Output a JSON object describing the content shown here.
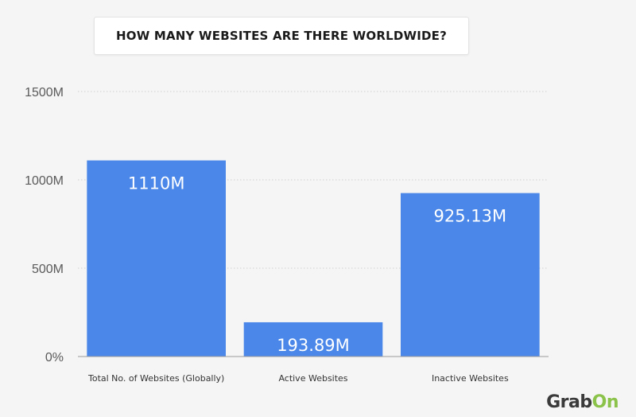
{
  "chart_data": {
    "type": "bar",
    "title": "HOW MANY WEBSITES ARE THERE WORLDWIDE?",
    "categories": [
      "Total No. of Websites (Globally)",
      "Active Websites",
      "Inactive Websites"
    ],
    "values": [
      1110,
      193.89,
      925.13
    ],
    "data_labels": [
      "1110M",
      "193.89M",
      "925.13M"
    ],
    "y_ticks": [
      0,
      500,
      1000,
      1500
    ],
    "y_tick_labels": [
      "0%",
      "500M",
      "1000M",
      "1500M"
    ],
    "ylim": [
      0,
      1500
    ],
    "xlabel": "",
    "ylabel": "",
    "grid": true,
    "bar_color": "#4a87e8"
  },
  "brand": {
    "main": "Grab",
    "accent": "On",
    "accent_color": "#8bc34a"
  }
}
